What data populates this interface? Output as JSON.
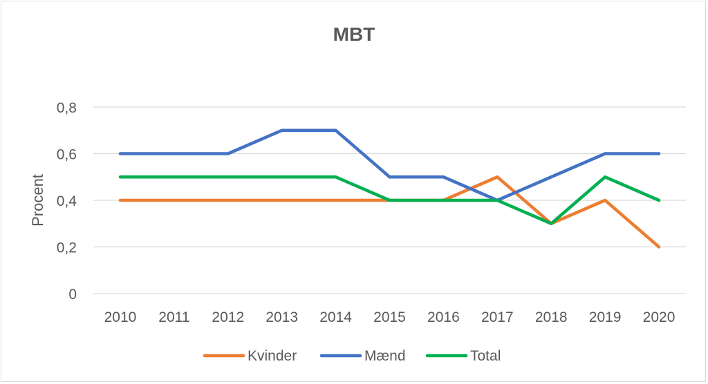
{
  "chart_data": {
    "type": "line",
    "title": "MBT",
    "xlabel": "",
    "ylabel": "Procent",
    "categories": [
      "2010",
      "2011",
      "2012",
      "2013",
      "2014",
      "2015",
      "2016",
      "2017",
      "2018",
      "2019",
      "2020"
    ],
    "ylim": [
      0,
      0.8
    ],
    "yticks": [
      0,
      0.2,
      0.4,
      0.6,
      0.8
    ],
    "ytick_labels": [
      "0",
      "0,2",
      "0,4",
      "0,6",
      "0,8"
    ],
    "grid": true,
    "legend_position": "bottom",
    "series": [
      {
        "name": "Kvinder",
        "color": "#ED7D31",
        "values": [
          0.4,
          0.4,
          0.4,
          0.4,
          0.4,
          0.4,
          0.4,
          0.5,
          0.3,
          0.4,
          0.2
        ]
      },
      {
        "name": "Mænd",
        "color": "#4472C4",
        "values": [
          0.6,
          0.6,
          0.6,
          0.7,
          0.7,
          0.5,
          0.5,
          0.4,
          0.5,
          0.6,
          0.6
        ]
      },
      {
        "name": "Total",
        "color": "#00B050",
        "values": [
          0.5,
          0.5,
          0.5,
          0.5,
          0.5,
          0.4,
          0.4,
          0.4,
          0.3,
          0.5,
          0.4
        ]
      }
    ]
  }
}
